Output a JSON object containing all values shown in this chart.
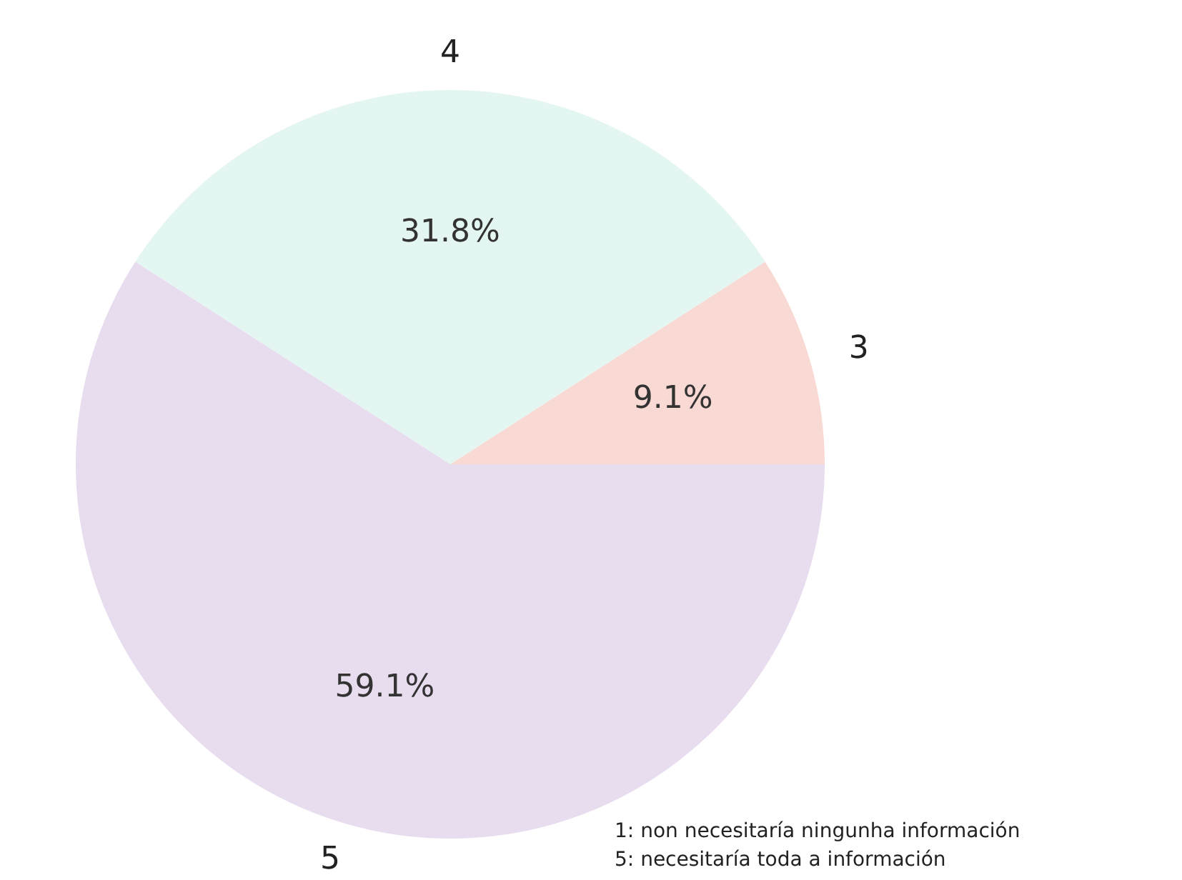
{
  "chart_data": {
    "type": "pie",
    "categories": [
      "3",
      "4",
      "5"
    ],
    "values": [
      9.1,
      31.8,
      59.1
    ],
    "value_labels": [
      "9.1%",
      "31.8%",
      "59.1%"
    ],
    "colors": [
      "#f9d9d3",
      "#e4f6f1",
      "#e8dcef"
    ],
    "annotations": [
      "1: non necesitaría ningunha información",
      "5: necesitaría toda a información"
    ]
  }
}
